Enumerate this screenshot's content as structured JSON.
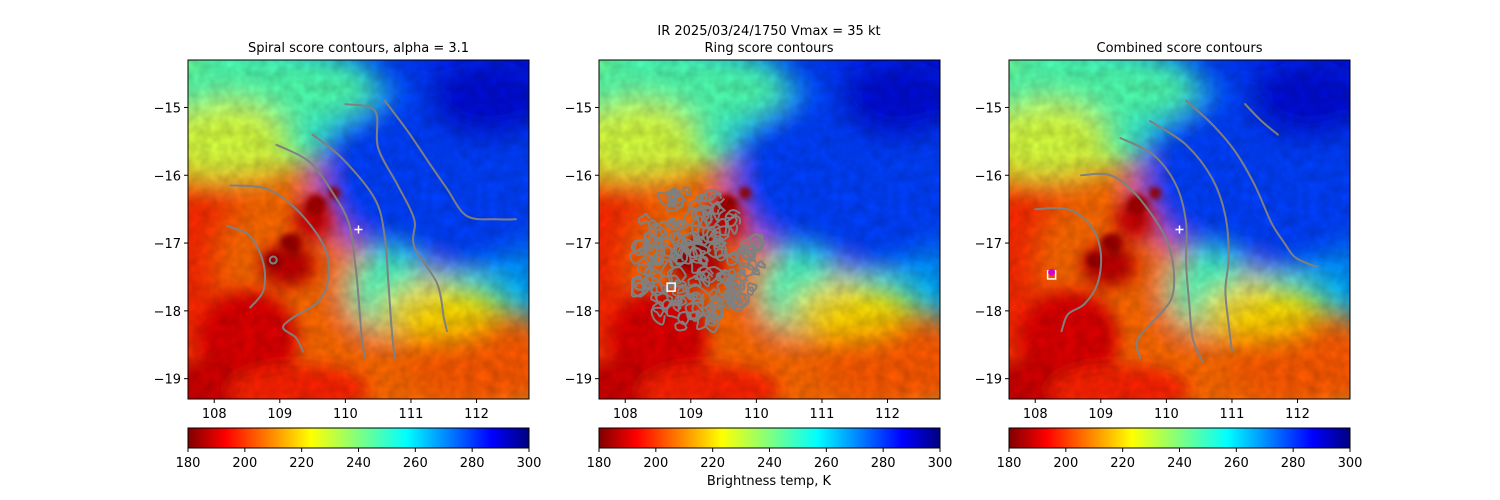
{
  "suptitle_line": "IR  2025/03/24/1750    Vmax = 35 kt",
  "colorbar_label": "Brightness temp, K",
  "colorbar": {
    "colormap": "jet_r",
    "vmin": 180,
    "vmax": 300,
    "ticks": [
      "180",
      "200",
      "220",
      "240",
      "260",
      "280",
      "300"
    ],
    "colors": [
      "#800000",
      "#ff0000",
      "#ff8000",
      "#ffff00",
      "#80ff80",
      "#00ffff",
      "#0080ff",
      "#0000ff",
      "#000080"
    ]
  },
  "colors": {
    "contour": "#808080",
    "marker_white": "#ffffff",
    "marker_magenta": "#d500d5"
  },
  "chart_data": [
    {
      "type": "heatmap",
      "id": "spiral",
      "title": "Spiral score contours, alpha =  3.1",
      "xlim": [
        107.6,
        112.8
      ],
      "ylim": [
        -19.3,
        -14.3
      ],
      "xticks": [
        "108",
        "109",
        "110",
        "111",
        "112"
      ],
      "yticks": [
        "−15",
        "−16",
        "−17",
        "−18",
        "−19"
      ],
      "xtick_values": [
        108,
        109,
        110,
        111,
        112
      ],
      "ytick_values": [
        -15,
        -16,
        -17,
        -18,
        -19
      ],
      "contours": [
        [
          [
            108.2,
            -16.75
          ],
          [
            108.55,
            -16.9
          ],
          [
            108.75,
            -17.3
          ],
          [
            108.75,
            -17.7
          ],
          [
            108.55,
            -17.95
          ]
        ],
        [
          [
            108.25,
            -16.15
          ],
          [
            108.8,
            -16.2
          ],
          [
            109.25,
            -16.5
          ],
          [
            109.65,
            -17.0
          ],
          [
            109.75,
            -17.45
          ],
          [
            109.6,
            -17.85
          ],
          [
            109.2,
            -18.1
          ],
          [
            109.05,
            -18.25
          ],
          [
            109.25,
            -18.4
          ],
          [
            109.35,
            -18.6
          ]
        ],
        [
          [
            108.95,
            -15.55
          ],
          [
            109.45,
            -15.8
          ],
          [
            109.8,
            -16.25
          ],
          [
            110.05,
            -16.7
          ],
          [
            110.15,
            -17.3
          ],
          [
            110.2,
            -17.8
          ],
          [
            110.25,
            -18.4
          ],
          [
            110.3,
            -18.7
          ]
        ],
        [
          [
            109.5,
            -15.4
          ],
          [
            109.95,
            -15.75
          ],
          [
            110.45,
            -16.35
          ],
          [
            110.6,
            -16.9
          ],
          [
            110.65,
            -17.5
          ],
          [
            110.7,
            -18.2
          ],
          [
            110.75,
            -18.7
          ]
        ],
        [
          [
            110.0,
            -14.95
          ],
          [
            110.45,
            -15.05
          ],
          [
            110.5,
            -15.6
          ],
          [
            110.8,
            -16.15
          ],
          [
            111.05,
            -16.65
          ],
          [
            111.05,
            -17.05
          ],
          [
            111.4,
            -17.6
          ],
          [
            111.5,
            -18.1
          ],
          [
            111.55,
            -18.3
          ]
        ],
        [
          [
            110.6,
            -14.9
          ],
          [
            110.95,
            -15.35
          ],
          [
            111.3,
            -15.85
          ],
          [
            111.55,
            -16.2
          ],
          [
            111.85,
            -16.6
          ],
          [
            112.3,
            -16.65
          ],
          [
            112.6,
            -16.65
          ]
        ]
      ],
      "markers": [
        {
          "kind": "plus",
          "x": 110.2,
          "y": -16.8,
          "color": "#ffffff"
        },
        {
          "kind": "circle",
          "x": 108.9,
          "y": -17.25,
          "color": "#808080"
        }
      ]
    },
    {
      "type": "heatmap",
      "id": "ring",
      "title": "Ring score contours",
      "xlim": [
        107.6,
        112.8
      ],
      "ylim": [
        -19.3,
        -14.3
      ],
      "xticks": [
        "108",
        "109",
        "110",
        "111",
        "112"
      ],
      "yticks": [
        "−15",
        "−16",
        "−17",
        "−18",
        "−19"
      ],
      "xtick_values": [
        108,
        109,
        110,
        111,
        112
      ],
      "ytick_values": [
        -15,
        -16,
        -17,
        -18,
        -19
      ],
      "ring_region": {
        "cx": 109.1,
        "cy": -17.25,
        "rx": 1.0,
        "ry": 1.05
      },
      "markers": [
        {
          "kind": "square",
          "x": 108.7,
          "y": -17.65,
          "color": "#ffffff"
        }
      ]
    },
    {
      "type": "heatmap",
      "id": "combined",
      "title": "Combined score contours",
      "xlim": [
        107.6,
        112.8
      ],
      "ylim": [
        -19.3,
        -14.3
      ],
      "xticks": [
        "108",
        "109",
        "110",
        "111",
        "112"
      ],
      "yticks": [
        "−15",
        "−16",
        "−17",
        "−18",
        "−19"
      ],
      "xtick_values": [
        108,
        109,
        110,
        111,
        112
      ],
      "ytick_values": [
        -15,
        -16,
        -17,
        -18,
        -19
      ],
      "contours": [
        [
          [
            108.0,
            -16.5
          ],
          [
            108.5,
            -16.5
          ],
          [
            108.85,
            -16.75
          ],
          [
            109.0,
            -17.15
          ],
          [
            108.95,
            -17.6
          ],
          [
            108.75,
            -17.9
          ],
          [
            108.5,
            -18.05
          ],
          [
            108.4,
            -18.3
          ]
        ],
        [
          [
            108.7,
            -16.0
          ],
          [
            109.15,
            -16.0
          ],
          [
            109.55,
            -16.3
          ],
          [
            109.95,
            -16.85
          ],
          [
            110.1,
            -17.3
          ],
          [
            110.1,
            -17.75
          ],
          [
            109.95,
            -18.0
          ],
          [
            109.75,
            -18.2
          ],
          [
            109.55,
            -18.45
          ],
          [
            109.6,
            -18.7
          ]
        ],
        [
          [
            109.3,
            -15.45
          ],
          [
            109.8,
            -15.7
          ],
          [
            110.15,
            -16.15
          ],
          [
            110.3,
            -16.7
          ],
          [
            110.3,
            -17.3
          ],
          [
            110.35,
            -17.9
          ],
          [
            110.4,
            -18.4
          ],
          [
            110.55,
            -18.75
          ]
        ],
        [
          [
            109.75,
            -15.2
          ],
          [
            110.3,
            -15.55
          ],
          [
            110.7,
            -16.05
          ],
          [
            110.9,
            -16.6
          ],
          [
            110.95,
            -17.2
          ],
          [
            110.9,
            -17.7
          ],
          [
            110.95,
            -18.2
          ],
          [
            111.0,
            -18.6
          ]
        ],
        [
          [
            110.3,
            -14.9
          ],
          [
            110.7,
            -15.25
          ],
          [
            111.05,
            -15.65
          ],
          [
            111.35,
            -16.15
          ],
          [
            111.6,
            -16.7
          ],
          [
            111.8,
            -17.0
          ],
          [
            111.95,
            -17.2
          ],
          [
            112.15,
            -17.3
          ],
          [
            112.3,
            -17.35
          ]
        ],
        [
          [
            111.2,
            -14.95
          ],
          [
            111.45,
            -15.2
          ],
          [
            111.7,
            -15.4
          ]
        ]
      ],
      "markers": [
        {
          "kind": "plus",
          "x": 110.2,
          "y": -16.8,
          "color": "#ffffff"
        },
        {
          "kind": "square",
          "x": 108.25,
          "y": -17.47,
          "color": "#ffffff"
        },
        {
          "kind": "dot",
          "x": 108.25,
          "y": -17.43,
          "color": "#d500d5"
        }
      ]
    }
  ]
}
